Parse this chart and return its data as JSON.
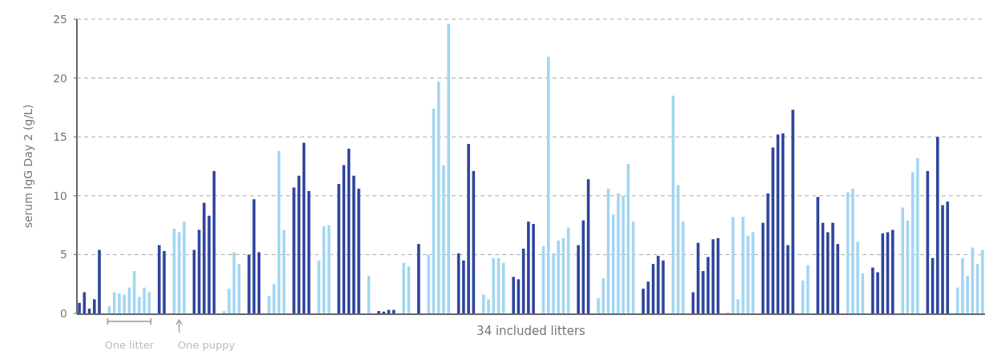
{
  "chart_data": {
    "type": "bar",
    "ylabel": "serum IgG Day 2 (g/L)",
    "xlabel": "34 included litters",
    "categories": [
      null,
      null,
      null,
      null,
      null,
      null,
      null,
      null,
      null,
      null,
      null,
      null,
      null,
      null,
      null,
      null,
      null,
      null,
      null,
      null,
      null,
      null,
      null,
      null,
      null,
      null,
      null,
      null,
      null,
      null,
      null,
      null,
      null,
      null,
      null,
      null,
      null,
      null,
      null,
      null,
      null,
      null,
      null,
      null,
      null,
      null,
      null,
      null,
      null,
      null,
      null,
      null,
      null,
      null,
      null,
      null,
      null,
      null,
      null,
      null,
      null,
      null,
      null,
      null,
      null,
      null,
      null,
      null,
      null,
      null,
      null,
      null,
      null,
      null,
      null,
      null,
      null,
      null,
      null,
      null,
      null,
      null,
      null,
      null,
      null,
      null,
      null,
      null,
      null,
      null,
      null,
      null,
      null,
      null,
      null,
      null,
      null,
      null,
      null,
      null,
      null,
      null,
      null,
      null,
      null,
      null,
      null,
      null,
      null,
      null,
      null,
      null,
      null,
      null,
      null,
      null,
      null,
      null,
      null,
      null,
      null,
      null,
      null,
      null,
      null,
      null,
      null,
      null,
      null,
      null,
      null,
      null,
      null,
      null,
      null,
      null,
      null,
      null,
      null,
      null,
      null,
      null,
      null,
      null,
      null,
      null,
      null,
      null,
      null,
      null,
      null,
      null,
      null,
      null,
      null,
      null,
      null,
      null,
      null,
      null,
      null,
      null,
      null,
      null,
      null,
      null,
      null,
      null,
      null,
      null,
      null,
      null,
      null,
      null,
      null,
      null,
      null,
      null,
      null,
      null,
      null,
      null
    ],
    "values": [
      0.9,
      1.8,
      0.4,
      1.2,
      5.4,
      null,
      0.6,
      1.8,
      1.7,
      1.6,
      2.2,
      3.6,
      1.4,
      2.2,
      1.8,
      null,
      5.8,
      5.3,
      null,
      7.2,
      6.9,
      7.8,
      null,
      5.4,
      7.1,
      9.4,
      8.3,
      12.1,
      null,
      0.2,
      2.1,
      5.2,
      4.2,
      null,
      5.0,
      9.7,
      5.2,
      null,
      1.5,
      2.5,
      13.8,
      7.1,
      null,
      10.7,
      11.7,
      14.5,
      10.4,
      null,
      4.5,
      7.4,
      7.5,
      null,
      11.0,
      12.6,
      14.0,
      11.7,
      10.6,
      null,
      3.2,
      null,
      0.2,
      0.15,
      0.3,
      0.3,
      null,
      4.3,
      4.0,
      null,
      5.9,
      null,
      5.0,
      17.4,
      19.7,
      12.6,
      24.6,
      null,
      5.1,
      4.5,
      14.4,
      12.1,
      null,
      1.6,
      1.2,
      4.7,
      4.7,
      4.3,
      null,
      3.1,
      2.9,
      5.5,
      7.8,
      7.6,
      null,
      5.7,
      21.8,
      5.1,
      6.2,
      6.4,
      7.3,
      null,
      5.8,
      7.9,
      11.4,
      null,
      1.3,
      3.0,
      10.6,
      8.4,
      10.2,
      10.0,
      12.7,
      7.8,
      null,
      2.1,
      2.7,
      4.2,
      4.9,
      4.5,
      null,
      18.5,
      10.9,
      7.8,
      null,
      1.8,
      6.0,
      3.6,
      4.8,
      6.3,
      6.4,
      null,
      0.1,
      8.2,
      1.2,
      8.2,
      6.6,
      6.9,
      null,
      7.7,
      10.2,
      14.1,
      15.2,
      15.3,
      5.8,
      17.3,
      null,
      2.8,
      4.1,
      null,
      9.9,
      7.7,
      6.9,
      7.7,
      5.9,
      null,
      10.3,
      10.6,
      6.1,
      3.4,
      null,
      3.9,
      3.5,
      6.8,
      6.9,
      7.1,
      null,
      9.0,
      7.9,
      12.0,
      13.2,
      null,
      12.1,
      4.7,
      15.0,
      9.2,
      9.5,
      null,
      2.2,
      4.7,
      3.2,
      5.6,
      4.2,
      5.4
    ],
    "colors": [
      "#2f459e",
      "#2f459e",
      "#2f459e",
      "#2f459e",
      "#2f459e",
      null,
      "#a3d6f2",
      "#a3d6f2",
      "#a3d6f2",
      "#a3d6f2",
      "#a3d6f2",
      "#a3d6f2",
      "#a3d6f2",
      "#a3d6f2",
      "#a3d6f2",
      null,
      "#2f459e",
      "#2f459e",
      null,
      "#a3d6f2",
      "#a3d6f2",
      "#a3d6f2",
      null,
      "#2f459e",
      "#2f459e",
      "#2f459e",
      "#2f459e",
      "#2f459e",
      null,
      "#a3d6f2",
      "#a3d6f2",
      "#a3d6f2",
      "#a3d6f2",
      null,
      "#2f459e",
      "#2f459e",
      "#2f459e",
      null,
      "#a3d6f2",
      "#a3d6f2",
      "#a3d6f2",
      "#a3d6f2",
      null,
      "#2f459e",
      "#2f459e",
      "#2f459e",
      "#2f459e",
      null,
      "#a3d6f2",
      "#a3d6f2",
      "#a3d6f2",
      null,
      "#2f459e",
      "#2f459e",
      "#2f459e",
      "#2f459e",
      "#2f459e",
      null,
      "#a3d6f2",
      null,
      "#2f459e",
      "#2f459e",
      "#2f459e",
      "#2f459e",
      null,
      "#a3d6f2",
      "#a3d6f2",
      null,
      "#2f459e",
      null,
      "#a3d6f2",
      "#a3d6f2",
      "#a3d6f2",
      "#a3d6f2",
      "#a3d6f2",
      null,
      "#2f459e",
      "#2f459e",
      "#2f459e",
      "#2f459e",
      null,
      "#a3d6f2",
      "#a3d6f2",
      "#a3d6f2",
      "#a3d6f2",
      "#a3d6f2",
      null,
      "#2f459e",
      "#2f459e",
      "#2f459e",
      "#2f459e",
      "#2f459e",
      null,
      "#a3d6f2",
      "#a3d6f2",
      "#a3d6f2",
      "#a3d6f2",
      "#a3d6f2",
      "#a3d6f2",
      null,
      "#2f459e",
      "#2f459e",
      "#2f459e",
      null,
      "#a3d6f2",
      "#a3d6f2",
      "#a3d6f2",
      "#a3d6f2",
      "#a3d6f2",
      "#a3d6f2",
      "#a3d6f2",
      "#a3d6f2",
      null,
      "#2f459e",
      "#2f459e",
      "#2f459e",
      "#2f459e",
      "#2f459e",
      null,
      "#a3d6f2",
      "#a3d6f2",
      "#a3d6f2",
      null,
      "#2f459e",
      "#2f459e",
      "#2f459e",
      "#2f459e",
      "#2f459e",
      "#2f459e",
      null,
      "#a3d6f2",
      "#a3d6f2",
      "#a3d6f2",
      "#a3d6f2",
      "#a3d6f2",
      "#a3d6f2",
      null,
      "#2f459e",
      "#2f459e",
      "#2f459e",
      "#2f459e",
      "#2f459e",
      "#2f459e",
      "#2f459e",
      null,
      "#a3d6f2",
      "#a3d6f2",
      null,
      "#2f459e",
      "#2f459e",
      "#2f459e",
      "#2f459e",
      "#2f459e",
      null,
      "#a3d6f2",
      "#a3d6f2",
      "#a3d6f2",
      "#a3d6f2",
      null,
      "#2f459e",
      "#2f459e",
      "#2f459e",
      "#2f459e",
      "#2f459e",
      null,
      "#a3d6f2",
      "#a3d6f2",
      "#a3d6f2",
      "#a3d6f2",
      null,
      "#2f459e",
      "#2f459e",
      "#2f459e",
      "#2f459e",
      "#2f459e",
      null,
      "#a3d6f2",
      "#a3d6f2",
      "#a3d6f2",
      "#a3d6f2",
      "#a3d6f2",
      "#a3d6f2"
    ],
    "ylim": [
      0,
      25
    ],
    "yticks": [
      0,
      5,
      10,
      15,
      20,
      25
    ],
    "grid": "y",
    "annotations": [
      "One litter",
      "One puppy"
    ]
  }
}
